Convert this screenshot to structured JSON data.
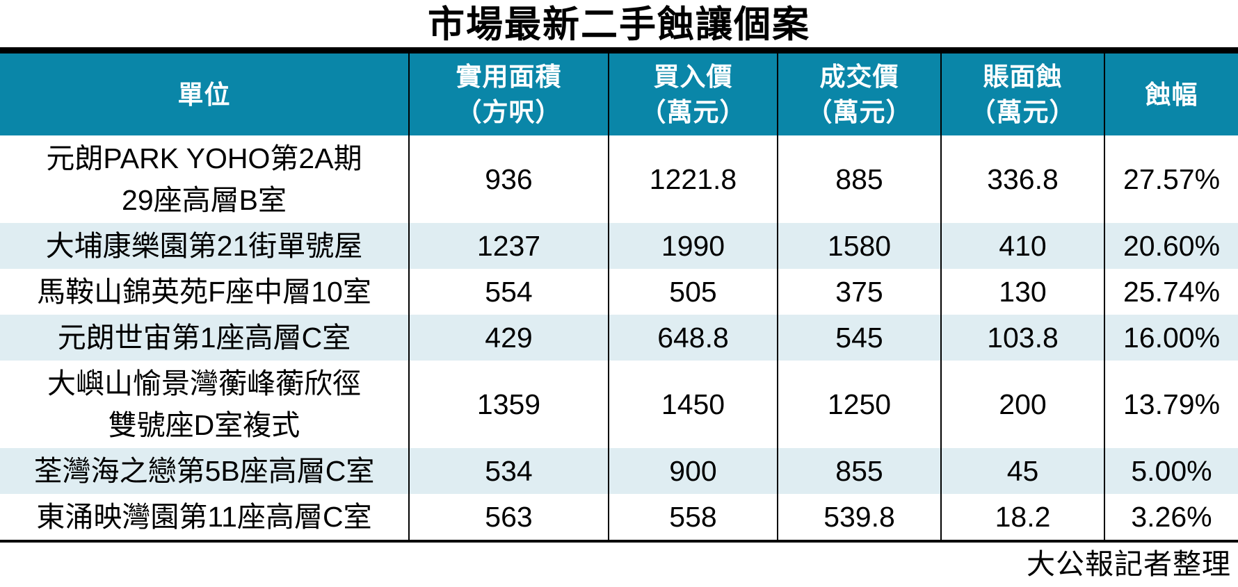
{
  "title": "市場最新二手蝕讓個案",
  "source_note": "大公報記者整理",
  "colors": {
    "header_bg": "#0A86A8",
    "header_text": "#FFFFFF",
    "alt_row_bg": "#DFEDF2",
    "row_bg": "#FFFFFF",
    "text": "#000000",
    "rule": "#000000"
  },
  "table": {
    "columns": [
      {
        "line1": "單位"
      },
      {
        "line1": "實用面積",
        "line2": "（方呎）"
      },
      {
        "line1": "買入價",
        "line2": "（萬元）"
      },
      {
        "line1": "成交價",
        "line2": "（萬元）"
      },
      {
        "line1": "賬面蝕",
        "line2": "（萬元）"
      },
      {
        "line1": "蝕幅"
      }
    ],
    "rows": [
      {
        "unit_lines": [
          "元朗PARK YOHO第2A期",
          "29座高層B室"
        ],
        "values": [
          "936",
          "1221.8",
          "885",
          "336.8",
          "27.57%"
        ]
      },
      {
        "unit_lines": [
          "大埔康樂園第21街單號屋"
        ],
        "values": [
          "1237",
          "1990",
          "1580",
          "410",
          "20.60%"
        ]
      },
      {
        "unit_lines": [
          "馬鞍山錦英苑F座中層10室"
        ],
        "values": [
          "554",
          "505",
          "375",
          "130",
          "25.74%"
        ]
      },
      {
        "unit_lines": [
          "元朗世宙第1座高層C室"
        ],
        "values": [
          "429",
          "648.8",
          "545",
          "103.8",
          "16.00%"
        ]
      },
      {
        "unit_lines": [
          "大嶼山愉景灣蘅峰蘅欣徑",
          "雙號座D室複式"
        ],
        "values": [
          "1359",
          "1450",
          "1250",
          "200",
          "13.79%"
        ]
      },
      {
        "unit_lines": [
          "荃灣海之戀第5B座高層C室"
        ],
        "values": [
          "534",
          "900",
          "855",
          "45",
          "5.00%"
        ]
      },
      {
        "unit_lines": [
          "東涌映灣園第11座高層C室"
        ],
        "values": [
          "563",
          "558",
          "539.8",
          "18.2",
          "3.26%"
        ]
      }
    ]
  },
  "chart_data": {
    "type": "table",
    "title": "市場最新二手蝕讓個案",
    "columns": [
      "單位",
      "實用面積（方呎）",
      "買入價（萬元）",
      "成交價（萬元）",
      "賬面蝕（萬元）",
      "蝕幅"
    ],
    "rows": [
      [
        "元朗PARK YOHO第2A期29座高層B室",
        936,
        1221.8,
        885,
        336.8,
        "27.57%"
      ],
      [
        "大埔康樂園第21街單號屋",
        1237,
        1990,
        1580,
        410,
        "20.60%"
      ],
      [
        "馬鞍山錦英苑F座中層10室",
        554,
        505,
        375,
        130,
        "25.74%"
      ],
      [
        "元朗世宙第1座高層C室",
        429,
        648.8,
        545,
        103.8,
        "16.00%"
      ],
      [
        "大嶼山愉景灣蘅峰蘅欣徑雙號座D室複式",
        1359,
        1450,
        1250,
        200,
        "13.79%"
      ],
      [
        "荃灣海之戀第5B座高層C室",
        534,
        900,
        855,
        45,
        "5.00%"
      ],
      [
        "東涌映灣園第11座高層C室",
        563,
        558,
        539.8,
        18.2,
        "3.26%"
      ]
    ],
    "source": "大公報記者整理"
  }
}
